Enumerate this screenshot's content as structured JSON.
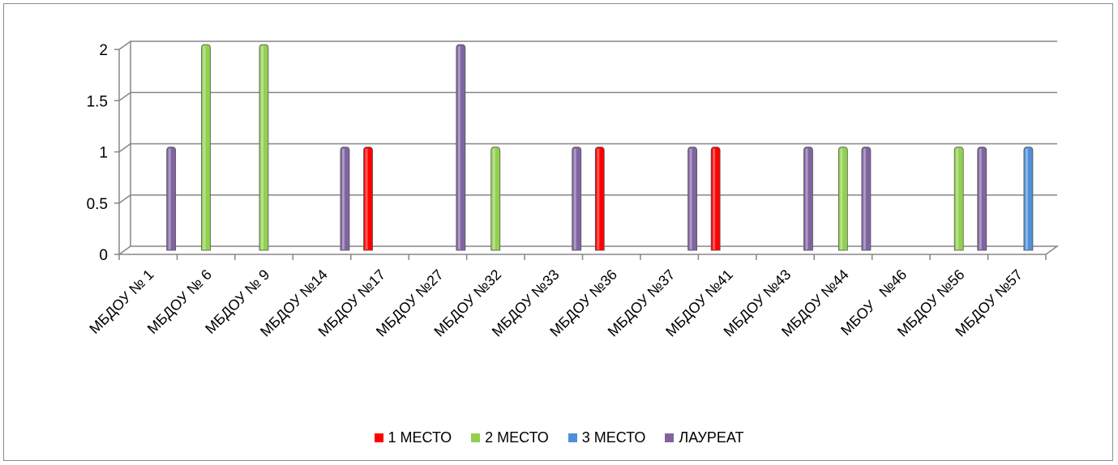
{
  "chart_data": {
    "type": "bar",
    "title": "",
    "xlabel": "",
    "ylabel": "",
    "ylim": [
      0,
      2
    ],
    "yticks": [
      "0",
      "0.5",
      "1",
      "1.5",
      "2"
    ],
    "grid": true,
    "legend_position": "bottom",
    "categories": [
      "МБДОУ № 1",
      "МБДОУ № 6",
      "МБДОУ № 9",
      "МБДОУ №14",
      "МБДОУ №17",
      "МБДОУ №27",
      "МБДОУ №32",
      "МБДОУ №33",
      "МБДОУ №36",
      "МБДОУ №37",
      "МБДОУ №41",
      "МБДОУ №43",
      "МБДОУ №44",
      "МБОУ   №46",
      "МБДОУ №56",
      "МБДОУ №57"
    ],
    "series": [
      {
        "name": "1 МЕСТО",
        "color": "#ff0000",
        "values": [
          0,
          0,
          0,
          0,
          1,
          0,
          0,
          0,
          1,
          0,
          1,
          0,
          0,
          0,
          0,
          0
        ]
      },
      {
        "name": "2 МЕСТО",
        "color": "#92d050",
        "values": [
          0,
          2,
          2,
          0,
          0,
          0,
          1,
          0,
          0,
          0,
          0,
          0,
          1,
          0,
          1,
          0
        ]
      },
      {
        "name": "3 МЕСТО",
        "color": "#4f8fd8",
        "values": [
          0,
          0,
          0,
          0,
          0,
          0,
          0,
          0,
          0,
          0,
          0,
          0,
          0,
          0,
          0,
          1
        ]
      },
      {
        "name": "ЛАУРЕАТ",
        "color": "#8064a2",
        "values": [
          1,
          0,
          0,
          1,
          0,
          2,
          0,
          1,
          0,
          1,
          0,
          1,
          1,
          0,
          1,
          0
        ]
      }
    ]
  }
}
